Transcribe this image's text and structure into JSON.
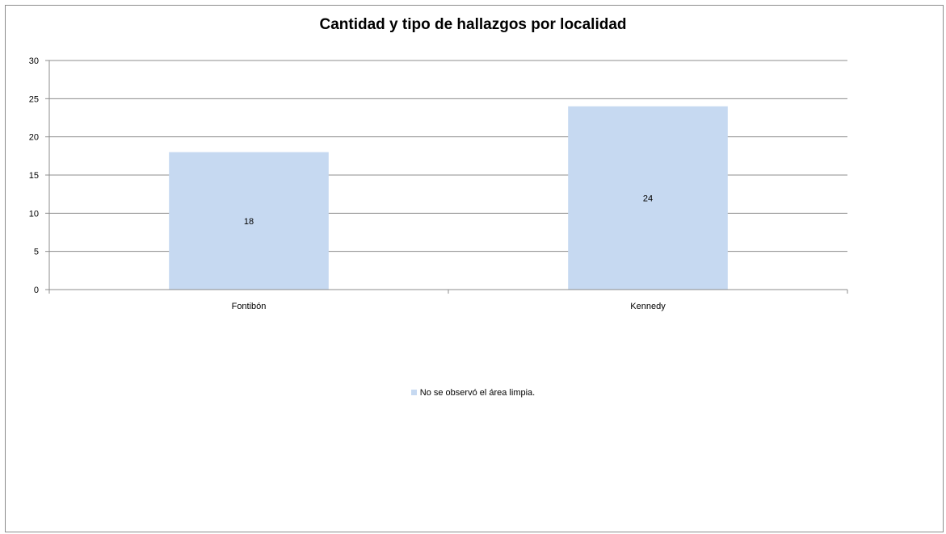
{
  "chart_data": {
    "type": "bar",
    "title": "Cantidad y tipo de hallazgos por localidad",
    "categories": [
      "Fontibón",
      "Kennedy"
    ],
    "series": [
      {
        "name": "No se observó el área limpia.",
        "values": [
          18,
          24
        ],
        "color": "#c6d9f1"
      }
    ],
    "ylim": [
      0,
      30
    ],
    "yticks": [
      0,
      5,
      10,
      15,
      20,
      25,
      30
    ],
    "xlabel": "",
    "ylabel": "",
    "grid": true,
    "legend_position": "bottom",
    "gridline_color": "#8c8c8c"
  }
}
